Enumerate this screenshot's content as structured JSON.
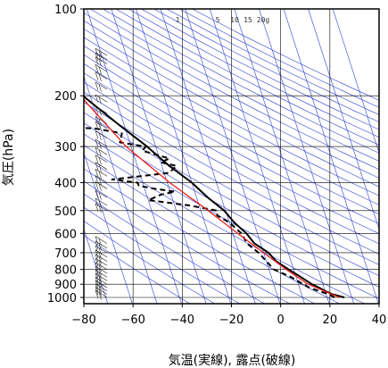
{
  "chart_data": {
    "type": "skew-t",
    "xlabel": "気温(実線), 露点(破線)",
    "ylabel": "気圧(hPa)",
    "xlim": [
      -80,
      40
    ],
    "ylim_hpa": [
      1050,
      100
    ],
    "x_ticks": [
      "−80",
      "−60",
      "−40",
      "−20",
      "0",
      "20",
      "40"
    ],
    "y_ticks": [
      "100",
      "200",
      "300",
      "400",
      "500",
      "600",
      "700",
      "800",
      "900",
      "1000"
    ],
    "y_tick_values": [
      100,
      200,
      300,
      400,
      500,
      600,
      700,
      800,
      900,
      1000
    ],
    "mixing_ratio_labels": [
      "1",
      "5",
      "10",
      "15",
      "20g"
    ],
    "colors": {
      "isotherm": "#2f3fd6",
      "dry_adiabat": "#2f3fd6",
      "temperature": "#000000",
      "dewpoint": "#000000",
      "parcel": "#e8201c",
      "grid": "#000000"
    },
    "series": [
      {
        "role": "temperature",
        "style": "solid",
        "points": [
          [
            1000,
            27.0
          ],
          [
            975,
            22.5
          ],
          [
            950,
            20.0
          ],
          [
            925,
            18.0
          ],
          [
            900,
            15.5
          ],
          [
            850,
            12.0
          ],
          [
            800,
            8.0
          ],
          [
            750,
            4.0
          ],
          [
            700,
            2.0
          ],
          [
            650,
            -2.5
          ],
          [
            600,
            -4.5
          ],
          [
            550,
            -8.0
          ],
          [
            500,
            -10.5
          ],
          [
            450,
            -15.5
          ],
          [
            400,
            -20.0
          ],
          [
            350,
            -27.0
          ],
          [
            300,
            -33.5
          ],
          [
            250,
            -42.5
          ],
          [
            200,
            -53.0
          ],
          [
            180,
            -58.0
          ],
          [
            160,
            -62.0
          ],
          [
            150,
            -62.5
          ],
          [
            140,
            -63.5
          ],
          [
            130,
            -64.5
          ],
          [
            120,
            -66.0
          ],
          [
            115,
            -66.5
          ],
          [
            110,
            -67.5
          ],
          [
            105,
            -66.5
          ],
          [
            100,
            -67.0
          ]
        ]
      },
      {
        "role": "dewpoint",
        "style": "dashed",
        "points": [
          [
            1000,
            23.0
          ],
          [
            975,
            21.0
          ],
          [
            950,
            17.5
          ],
          [
            925,
            14.0
          ],
          [
            900,
            12.0
          ],
          [
            850,
            8.0
          ],
          [
            800,
            2.0
          ],
          [
            750,
            0.0
          ],
          [
            700,
            -2.0
          ],
          [
            650,
            -5.5
          ],
          [
            600,
            -6.5
          ],
          [
            550,
            -10.0
          ],
          [
            520,
            -14.0
          ],
          [
            500,
            -13.5
          ],
          [
            480,
            -24.0
          ],
          [
            460,
            -40.0
          ],
          [
            440,
            -34.0
          ],
          [
            430,
            -28.0
          ],
          [
            420,
            -36.0
          ],
          [
            410,
            -42.0
          ],
          [
            400,
            -42.0
          ],
          [
            390,
            -52.0
          ],
          [
            380,
            -40.0
          ],
          [
            370,
            -28.0
          ],
          [
            350,
            -24.0
          ],
          [
            340,
            -30.0
          ],
          [
            330,
            -26.0
          ],
          [
            310,
            -36.0
          ],
          [
            300,
            -34.0
          ],
          [
            290,
            -44.0
          ],
          [
            270,
            -42.0
          ],
          [
            260,
            -52.0
          ],
          [
            255,
            -68.0
          ],
          [
            250,
            -78.0
          ],
          [
            250,
            -85.0
          ]
        ]
      },
      {
        "role": "parcel",
        "style": "solid",
        "points": [
          [
            1000,
            25.0
          ],
          [
            900,
            14.0
          ],
          [
            800,
            7.0
          ],
          [
            700,
            0.0
          ],
          [
            600,
            -8.0
          ],
          [
            500,
            -17.0
          ],
          [
            400,
            -29.0
          ],
          [
            300,
            -42.0
          ],
          [
            200,
            -54.0
          ],
          [
            150,
            -63.0
          ],
          [
            100,
            -73.0
          ]
        ]
      }
    ],
    "wind_barbs_hpa": [
      1000,
      975,
      950,
      925,
      900,
      875,
      850,
      825,
      800,
      775,
      750,
      725,
      700,
      675,
      650,
      500,
      480,
      450,
      420,
      400,
      380,
      360,
      340,
      320,
      300,
      280,
      260,
      250,
      230,
      210,
      190,
      175,
      165,
      155,
      150,
      145
    ]
  }
}
